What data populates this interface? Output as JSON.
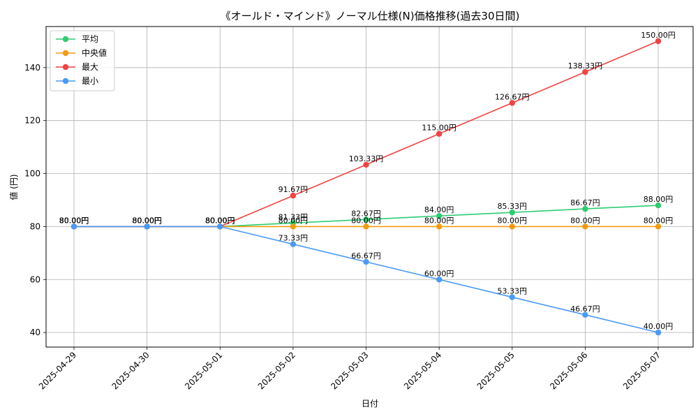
{
  "chart_data": {
    "type": "line",
    "title": "《オールド・マインド》ノーマル仕様(N)価格推移(過去30日間)",
    "xlabel": "日付",
    "ylabel": "値 (円)",
    "categories": [
      "2025-04-29",
      "2025-04-30",
      "2025-05-01",
      "2025-05-02",
      "2025-05-03",
      "2025-05-04",
      "2025-05-05",
      "2025-05-06",
      "2025-05-07"
    ],
    "ylim": [
      34.5,
      155.5
    ],
    "yticks": [
      40,
      60,
      80,
      100,
      120,
      140
    ],
    "grid": true,
    "legend_position": "top-left",
    "label_suffix": "円",
    "series": [
      {
        "name": "平均",
        "color": "#2ecc71",
        "values": [
          80.0,
          80.0,
          80.0,
          81.33,
          82.67,
          84.0,
          85.33,
          86.67,
          88.0
        ]
      },
      {
        "name": "中央値",
        "color": "#f39c12",
        "values": [
          80.0,
          80.0,
          80.0,
          80.0,
          80.0,
          80.0,
          80.0,
          80.0,
          80.0
        ]
      },
      {
        "name": "最大",
        "color": "#ef4444",
        "values": [
          80.0,
          80.0,
          80.0,
          91.67,
          103.33,
          115.0,
          126.67,
          138.33,
          150.0
        ]
      },
      {
        "name": "最小",
        "color": "#4a9af5",
        "values": [
          80.0,
          80.0,
          80.0,
          73.33,
          66.67,
          60.0,
          53.33,
          46.67,
          40.0
        ]
      }
    ]
  }
}
